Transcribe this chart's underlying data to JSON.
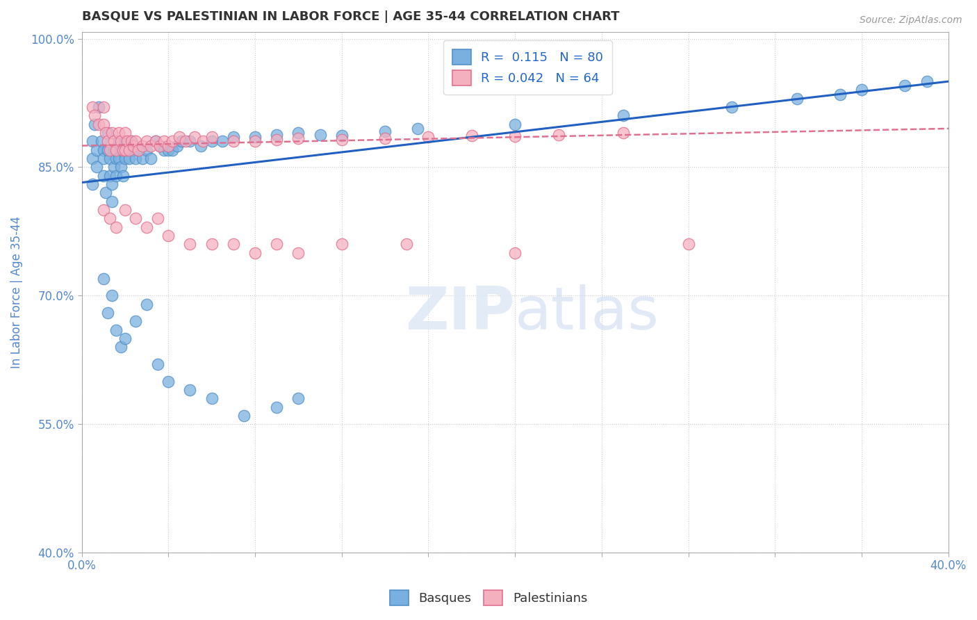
{
  "title": "BASQUE VS PALESTINIAN IN LABOR FORCE | AGE 35-44 CORRELATION CHART",
  "source_text": "Source: ZipAtlas.com",
  "ylabel": "In Labor Force | Age 35-44",
  "xmin": 0.0,
  "xmax": 0.4,
  "ymin": 0.4,
  "ymax": 1.008,
  "xticks": [
    0.0,
    0.04,
    0.08,
    0.12,
    0.16,
    0.2,
    0.24,
    0.28,
    0.32,
    0.36,
    0.4
  ],
  "xticklabels": [
    "0.0%",
    "",
    "",
    "",
    "",
    "",
    "",
    "",
    "",
    "",
    "40.0%"
  ],
  "ytick_positions": [
    0.4,
    0.55,
    0.7,
    0.85,
    1.0
  ],
  "yticklabels": [
    "40.0%",
    "55.0%",
    "70.0%",
    "85.0%",
    "100.0%"
  ],
  "basque_color": "#7ab0e0",
  "basque_edge_color": "#5090c8",
  "palestinian_color": "#f5b0c0",
  "palestinian_edge_color": "#e07090",
  "trend_blue": "#2060c0",
  "trend_pink": "#e07090",
  "R_blue": 0.115,
  "N_blue": 80,
  "R_pink": 0.042,
  "N_pink": 64,
  "watermark_zip": "ZIP",
  "watermark_atlas": "atlas",
  "background_color": "#ffffff",
  "grid_color": "#cccccc",
  "title_color": "#333333",
  "axis_label_color": "#5588cc",
  "legend_R_color": "#2266cc",
  "basque_x": [
    0.005,
    0.005,
    0.005,
    0.006,
    0.007,
    0.007,
    0.008,
    0.009,
    0.01,
    0.01,
    0.01,
    0.011,
    0.012,
    0.012,
    0.013,
    0.013,
    0.014,
    0.014,
    0.015,
    0.015,
    0.016,
    0.016,
    0.017,
    0.017,
    0.018,
    0.018,
    0.019,
    0.02,
    0.02,
    0.021,
    0.022,
    0.023,
    0.024,
    0.025,
    0.026,
    0.028,
    0.03,
    0.032,
    0.034,
    0.036,
    0.038,
    0.04,
    0.042,
    0.044,
    0.046,
    0.05,
    0.055,
    0.06,
    0.065,
    0.07,
    0.08,
    0.09,
    0.1,
    0.11,
    0.12,
    0.14,
    0.155,
    0.2,
    0.25,
    0.3,
    0.33,
    0.35,
    0.36,
    0.38,
    0.39,
    0.01,
    0.012,
    0.014,
    0.016,
    0.018,
    0.02,
    0.025,
    0.03,
    0.035,
    0.04,
    0.05,
    0.06,
    0.075,
    0.09,
    0.1
  ],
  "basque_y": [
    0.88,
    0.86,
    0.83,
    0.9,
    0.87,
    0.85,
    0.92,
    0.88,
    0.87,
    0.86,
    0.84,
    0.82,
    0.89,
    0.87,
    0.86,
    0.84,
    0.83,
    0.81,
    0.87,
    0.85,
    0.86,
    0.84,
    0.88,
    0.86,
    0.87,
    0.85,
    0.84,
    0.88,
    0.86,
    0.87,
    0.86,
    0.88,
    0.87,
    0.86,
    0.87,
    0.86,
    0.87,
    0.86,
    0.88,
    0.875,
    0.87,
    0.87,
    0.87,
    0.875,
    0.88,
    0.88,
    0.875,
    0.88,
    0.88,
    0.885,
    0.885,
    0.888,
    0.89,
    0.888,
    0.887,
    0.892,
    0.895,
    0.9,
    0.91,
    0.92,
    0.93,
    0.935,
    0.94,
    0.945,
    0.95,
    0.72,
    0.68,
    0.7,
    0.66,
    0.64,
    0.65,
    0.67,
    0.69,
    0.62,
    0.6,
    0.59,
    0.58,
    0.56,
    0.57,
    0.58
  ],
  "palestinian_x": [
    0.005,
    0.006,
    0.008,
    0.01,
    0.01,
    0.011,
    0.012,
    0.013,
    0.014,
    0.015,
    0.016,
    0.017,
    0.018,
    0.019,
    0.02,
    0.02,
    0.021,
    0.022,
    0.023,
    0.024,
    0.025,
    0.026,
    0.028,
    0.03,
    0.032,
    0.034,
    0.036,
    0.038,
    0.04,
    0.042,
    0.045,
    0.048,
    0.052,
    0.056,
    0.06,
    0.07,
    0.08,
    0.09,
    0.1,
    0.12,
    0.14,
    0.16,
    0.18,
    0.2,
    0.22,
    0.25,
    0.01,
    0.013,
    0.016,
    0.02,
    0.025,
    0.03,
    0.035,
    0.04,
    0.05,
    0.06,
    0.07,
    0.08,
    0.09,
    0.1,
    0.12,
    0.15,
    0.2,
    0.28
  ],
  "palestinian_y": [
    0.92,
    0.91,
    0.9,
    0.92,
    0.9,
    0.89,
    0.88,
    0.87,
    0.89,
    0.88,
    0.87,
    0.89,
    0.88,
    0.87,
    0.89,
    0.87,
    0.88,
    0.87,
    0.88,
    0.875,
    0.88,
    0.87,
    0.875,
    0.88,
    0.875,
    0.88,
    0.875,
    0.88,
    0.875,
    0.88,
    0.885,
    0.88,
    0.885,
    0.88,
    0.885,
    0.88,
    0.88,
    0.882,
    0.884,
    0.882,
    0.884,
    0.885,
    0.887,
    0.886,
    0.888,
    0.89,
    0.8,
    0.79,
    0.78,
    0.8,
    0.79,
    0.78,
    0.79,
    0.77,
    0.76,
    0.76,
    0.76,
    0.75,
    0.76,
    0.75,
    0.76,
    0.76,
    0.75,
    0.76
  ]
}
